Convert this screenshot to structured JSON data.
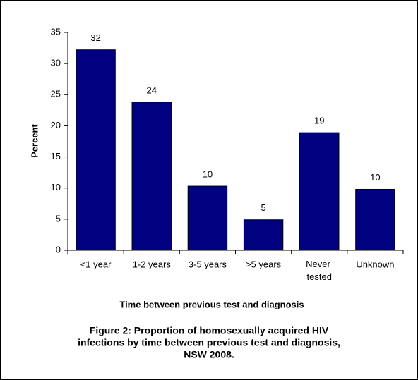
{
  "chart_data": {
    "type": "bar",
    "title": [
      "Figure 2: Proportion of homosexually acquired HIV",
      "infections by time between previous test and diagnosis,",
      "NSW 2008."
    ],
    "x_label": "Time between previous test and diagnosis",
    "y_label": "Percent",
    "categories": [
      "<1 year",
      "1-2 years",
      "3-5 years",
      ">5 years",
      "Never tested",
      "Unknown"
    ],
    "values": [
      32.2,
      23.8,
      10.3,
      4.9,
      18.9,
      9.8
    ],
    "value_labels": [
      "32",
      "24",
      "10",
      "5",
      "19",
      "10"
    ],
    "color": "#000080",
    "ylim": [
      0,
      35
    ],
    "yticks": [
      0,
      5,
      10,
      15,
      20,
      25,
      30,
      35
    ],
    "grid": false
  }
}
